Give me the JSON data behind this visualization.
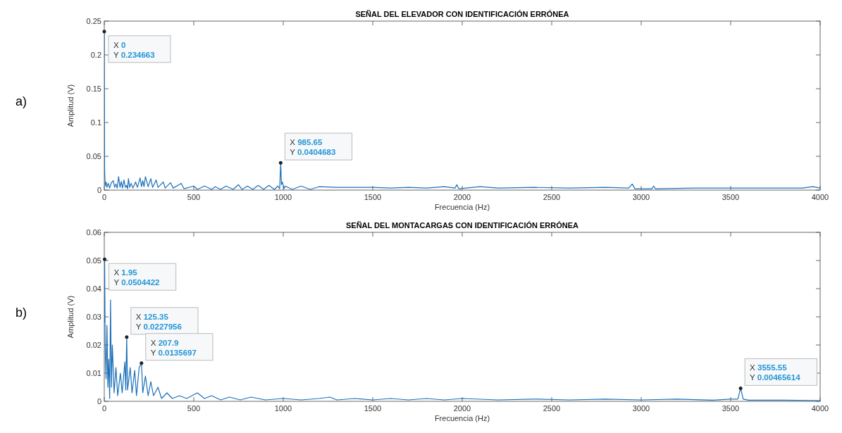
{
  "chart_data": [
    {
      "type": "line",
      "title": "SEÑAL DEL ELEVADOR CON IDENTIFICACIÓN ERRÓNEA",
      "xlabel": "Frecuencia (Hz)",
      "ylabel": "Amplitud (V)",
      "x": [
        0,
        2,
        5,
        10,
        15,
        22,
        30,
        40,
        50,
        58,
        65,
        72,
        80,
        88,
        95,
        102,
        110,
        118,
        125,
        130,
        135,
        142,
        150,
        160,
        175,
        185,
        200,
        208,
        215,
        222,
        230,
        245,
        260,
        270,
        290,
        300,
        330,
        340,
        370,
        385,
        430,
        445,
        500,
        520,
        560,
        600,
        620,
        650,
        680,
        720,
        750,
        770,
        800,
        830,
        860,
        890,
        920,
        950,
        970,
        980,
        985.65,
        990,
        995,
        1005,
        1010,
        1050,
        1100,
        1150,
        1200,
        1300,
        1400,
        1500,
        1600,
        1700,
        1800,
        1900,
        1960,
        1970,
        1980,
        2100,
        2200,
        2400,
        2600,
        2800,
        2930,
        2950,
        2965,
        3060,
        3070,
        3080,
        3300,
        3500,
        3700,
        3900,
        3960,
        4000
      ],
      "series": [
        {
          "color": "#1a6fb8",
          "values": [
            0.234663,
            0.03,
            0.006,
            0.012,
            0.004,
            0.01,
            0.003,
            0.011,
            0.014,
            0.004,
            0.009,
            0.003,
            0.02,
            0.004,
            0.013,
            0.003,
            0.015,
            0.004,
            0.007,
            0.002,
            0.017,
            0.004,
            0.01,
            0.003,
            0.012,
            0.004,
            0.018,
            0.005,
            0.014,
            0.005,
            0.02,
            0.005,
            0.017,
            0.004,
            0.015,
            0.004,
            0.012,
            0.003,
            0.011,
            0.003,
            0.01,
            0.002,
            0.006,
            0.001,
            0.006,
            0.001,
            0.005,
            0.001,
            0.006,
            0.001,
            0.008,
            0.001,
            0.006,
            0.001,
            0.007,
            0.001,
            0.007,
            0.001,
            0.006,
            0.002,
            0.0404683,
            0.008,
            0.012,
            0.002,
            0.006,
            0.001,
            0.006,
            0.001,
            0.005,
            0.004,
            0.004,
            0.004,
            0.003,
            0.004,
            0.003,
            0.005,
            0.003,
            0.008,
            0.002,
            0.005,
            0.003,
            0.004,
            0.003,
            0.004,
            0.003,
            0.009,
            0.002,
            0.002,
            0.006,
            0.002,
            0.003,
            0.003,
            0.003,
            0.003,
            0.005,
            0.003
          ]
        }
      ],
      "xlim": [
        0,
        4000
      ],
      "xticks": [
        0,
        500,
        1000,
        1500,
        2000,
        2500,
        3000,
        3500,
        4000
      ],
      "ylim": [
        0,
        0.25
      ],
      "yticks": [
        0,
        0.05,
        0.1,
        0.15,
        0.2,
        0.25
      ],
      "annotations": [
        "a)",
        {
          "text": "X 0\nY 0.234663",
          "x": 0,
          "y": 0.234663
        },
        {
          "text": "X 985.65\nY 0.0404683",
          "x": 985.65,
          "y": 0.0404683
        }
      ]
    },
    {
      "type": "line",
      "title": "SEÑAL DEL MONTACARGAS CON IDENTIFICACIÓN ERRÓNEA",
      "xlabel": "Frecuencia (Hz)",
      "ylabel": "Amplitud (V)",
      "x": [
        0,
        1.95,
        5,
        10,
        15,
        20,
        25,
        30,
        35,
        40,
        45,
        55,
        65,
        75,
        90,
        100,
        115,
        120,
        125.35,
        130,
        145,
        155,
        170,
        180,
        195,
        207.9,
        215,
        230,
        245,
        260,
        275,
        300,
        320,
        350,
        380,
        420,
        460,
        520,
        560,
        600,
        650,
        700,
        760,
        820,
        900,
        1000,
        1100,
        1200,
        1260,
        1300,
        1400,
        1500,
        1600,
        1700,
        1800,
        1900,
        2000,
        2200,
        2400,
        2600,
        2800,
        3000,
        3200,
        3400,
        3500,
        3540,
        3555.55,
        3570,
        3600,
        3800,
        4000
      ],
      "series": [
        {
          "color": "#1a6fb8",
          "values": [
            0.028,
            0.0504422,
            0.02,
            0.008,
            0.027,
            0.005,
            0.015,
            0.001,
            0.036,
            0.005,
            0.02,
            0.003,
            0.012,
            0.002,
            0.01,
            0.003,
            0.014,
            0.004,
            0.0227956,
            0.004,
            0.012,
            0.003,
            0.011,
            0.002,
            0.012,
            0.0135697,
            0.003,
            0.009,
            0.002,
            0.007,
            0.002,
            0.005,
            0.001,
            0.003,
            0.001,
            0.002,
            0.001,
            0.003,
            0.001,
            0.002,
            0.0005,
            0.0015,
            0.0005,
            0.0015,
            0.0005,
            0.001,
            0.0005,
            0.001,
            0.0015,
            0.0005,
            0.001,
            0.0005,
            0.001,
            0.0005,
            0.001,
            0.0005,
            0.001,
            0.0005,
            0.0008,
            0.0005,
            0.0008,
            0.0005,
            0.0008,
            0.0004,
            0.0008,
            0.0008,
            0.00465614,
            0.0008,
            0.0004,
            0.0004,
            0.0002
          ]
        }
      ],
      "xlim": [
        0,
        4000
      ],
      "xticks": [
        0,
        500,
        1000,
        1500,
        2000,
        2500,
        3000,
        3500,
        4000
      ],
      "ylim": [
        0,
        0.06
      ],
      "yticks": [
        0,
        0.01,
        0.02,
        0.03,
        0.04,
        0.05,
        0.06
      ],
      "annotations": [
        "b)",
        {
          "text": "X 1.95\nY 0.0504422",
          "x": 1.95,
          "y": 0.0504422
        },
        {
          "text": "X 125.35\nY 0.0227956",
          "x": 125.35,
          "y": 0.0227956
        },
        {
          "text": "X 207.9\nY 0.0135697",
          "x": 207.9,
          "y": 0.0135697
        },
        {
          "text": "X 3555.55\nY 0.00465614",
          "x": 3555.55,
          "y": 0.00465614
        }
      ]
    }
  ]
}
